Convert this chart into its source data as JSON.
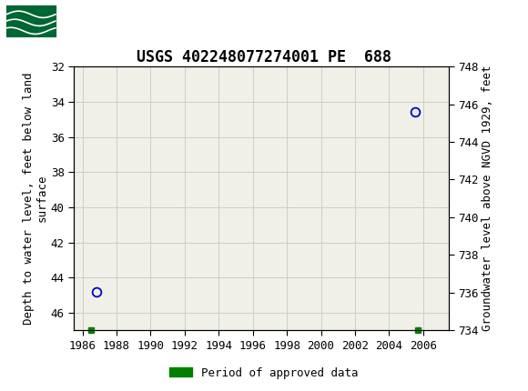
{
  "title": "USGS 402248077274001 PE  688",
  "ylabel_left": "Depth to water level, feet below land\nsurface",
  "ylabel_right": "Groundwater level above NGVD 1929, feet",
  "xlim": [
    1985.5,
    2007.5
  ],
  "ylim_left_top": 32,
  "ylim_left_bottom": 47,
  "ylim_right_top": 748,
  "ylim_right_bottom": 734,
  "xticks": [
    1986,
    1988,
    1990,
    1992,
    1994,
    1996,
    1998,
    2000,
    2002,
    2004,
    2006
  ],
  "yticks_left": [
    32,
    34,
    36,
    38,
    40,
    42,
    44,
    46
  ],
  "yticks_right": [
    748,
    746,
    744,
    742,
    740,
    738,
    736,
    734
  ],
  "data_points": [
    {
      "x": 1986.8,
      "y_left": 44.8
    },
    {
      "x": 2005.5,
      "y_left": 34.6
    }
  ],
  "green_markers": [
    {
      "x": 1986.5
    },
    {
      "x": 2005.7
    }
  ],
  "header_color": "#006633",
  "bg_color": "#f0f0e8",
  "grid_color": "#cccccc",
  "point_color": "#0000cc",
  "legend_label": "Period of approved data",
  "legend_color": "#008000",
  "title_fontsize": 12,
  "axis_label_fontsize": 9,
  "tick_fontsize": 9
}
